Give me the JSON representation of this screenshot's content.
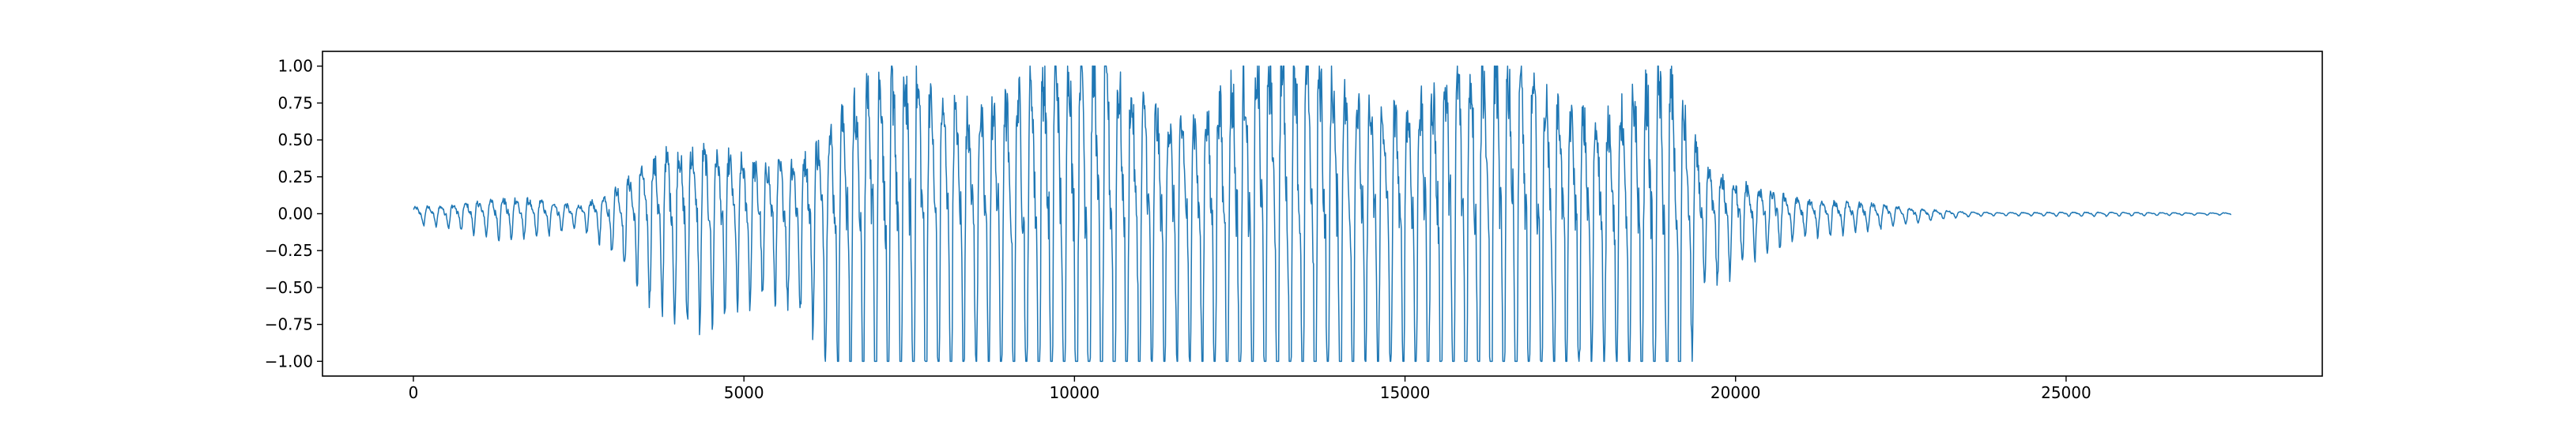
{
  "chart_data": {
    "type": "line",
    "title": "",
    "xlabel": "",
    "ylabel": "",
    "xlim": [
      -1375,
      28875
    ],
    "ylim": [
      -1.1,
      1.1
    ],
    "x_ticks": [
      0,
      5000,
      10000,
      15000,
      20000,
      25000
    ],
    "x_tick_labels": [
      "0",
      "5000",
      "10000",
      "15000",
      "20000",
      "25000"
    ],
    "y_ticks": [
      1.0,
      0.75,
      0.5,
      0.25,
      0.0,
      -0.25,
      -0.5,
      -0.75,
      -1.0
    ],
    "y_tick_labels": [
      "1.00",
      "0.75",
      "0.50",
      "0.25",
      "0.00",
      "−0.25",
      "−0.50",
      "−0.75",
      "−1.00"
    ],
    "grid": false,
    "legend": "none",
    "series": [
      {
        "color": "#1f77b4",
        "x_start": 0,
        "x_end": 27500,
        "n_samples": 27500,
        "values_clip": [
          -1.0,
          1.0
        ],
        "envelope_x": [
          0,
          500,
          1000,
          1500,
          2000,
          2500,
          3000,
          3500,
          4000,
          4500,
          5000,
          5500,
          6000,
          6500,
          7000,
          7500,
          8000,
          8500,
          9000,
          9500,
          10000,
          10500,
          11000,
          11500,
          12000,
          12500,
          13000,
          13500,
          14000,
          14500,
          15000,
          15500,
          16000,
          16500,
          17000,
          17500,
          18000,
          18500,
          19000,
          19500,
          20000,
          20500,
          21000,
          21500,
          22000,
          22500,
          23000,
          23500,
          24000,
          25000,
          26000,
          27500
        ],
        "envelope_amp": [
          0.06,
          0.06,
          0.09,
          0.14,
          0.15,
          0.1,
          0.22,
          0.38,
          0.5,
          0.55,
          0.6,
          0.62,
          0.66,
          0.85,
          1.05,
          1.2,
          1.25,
          1.3,
          1.3,
          1.28,
          1.25,
          1.2,
          1.18,
          1.2,
          1.22,
          1.25,
          1.27,
          1.28,
          1.3,
          1.3,
          1.28,
          1.25,
          1.2,
          1.18,
          1.2,
          1.22,
          1.25,
          1.25,
          1.15,
          0.35,
          0.28,
          0.26,
          0.18,
          0.12,
          0.08,
          0.05,
          0.03,
          0.02,
          0.015,
          0.012,
          0.01,
          0.01
        ],
        "pitch_period": 190
      }
    ]
  }
}
